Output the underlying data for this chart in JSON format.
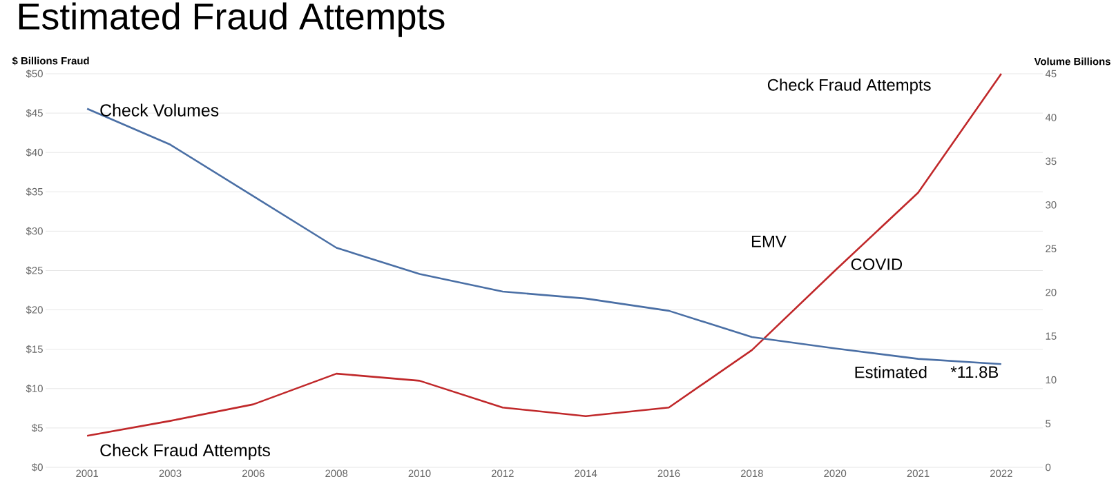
{
  "chart_data": {
    "type": "line",
    "title": "Estimated Fraud Attempts",
    "ylabel": "$ Billions Fraud",
    "y2label": "Volume Billions",
    "categories": [
      "2001",
      "2003",
      "2006",
      "2008",
      "2010",
      "2012",
      "2014",
      "2016",
      "2018",
      "2020",
      "2021",
      "2022"
    ],
    "series": [
      {
        "name": "Check Volumes",
        "color": "#4a6fa5",
        "axis": "y2",
        "values": [
          41.0,
          36.9,
          31.0,
          25.1,
          22.1,
          20.1,
          19.3,
          17.9,
          14.9,
          13.6,
          12.4,
          11.8
        ]
      },
      {
        "name": "Check Fraud Attempts",
        "color": "#c0282a",
        "axis": "y",
        "values": [
          4.0,
          5.9,
          8.0,
          11.9,
          11.0,
          7.6,
          6.5,
          7.6,
          14.9,
          25.0,
          34.9,
          50.0
        ]
      }
    ],
    "ylim": [
      0,
      50
    ],
    "yticks": [
      {
        "value": 0,
        "label": "$0"
      },
      {
        "value": 5,
        "label": "$5"
      },
      {
        "value": 10,
        "label": "$10"
      },
      {
        "value": 15,
        "label": "$15"
      },
      {
        "value": 20,
        "label": "$20"
      },
      {
        "value": 25,
        "label": "$25"
      },
      {
        "value": 30,
        "label": "$30"
      },
      {
        "value": 35,
        "label": "$35"
      },
      {
        "value": 40,
        "label": "$40"
      },
      {
        "value": 45,
        "label": "$45"
      },
      {
        "value": 50,
        "label": "$50"
      }
    ],
    "y2lim": [
      0,
      45
    ],
    "y2ticks": [
      0,
      5,
      10,
      15,
      20,
      25,
      30,
      35,
      40,
      45
    ],
    "grid": "y",
    "line_style": "solid",
    "marker": "none",
    "annotations": [
      "Check Fraud Attempts",
      "EMV",
      "COVID",
      "Estimated",
      "*11.8B"
    ]
  }
}
